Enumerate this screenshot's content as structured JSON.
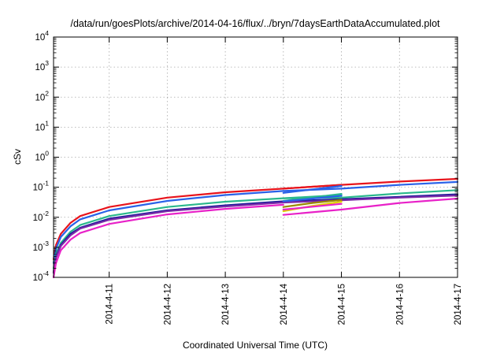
{
  "chart_data": {
    "type": "line",
    "title": "/data/run/goesPlots/archive/2014-04-16/flux/../bryn/7daysEarthDataAccumulated.plot",
    "xlabel": "Coordinated Universal Time (UTC)",
    "ylabel": "cSv",
    "x_ticks": [
      "2014-4-11",
      "2014-4-12",
      "2014-4-13",
      "2014-4-14",
      "2014-4-15",
      "2014-4-16",
      "2014-4-17"
    ],
    "y_ticks": [
      {
        "base": "10",
        "exp": "-4",
        "value": 0.0001
      },
      {
        "base": "10",
        "exp": "-3",
        "value": 0.001
      },
      {
        "base": "10",
        "exp": "-2",
        "value": 0.01
      },
      {
        "base": "10",
        "exp": "-1",
        "value": 0.1
      },
      {
        "base": "10",
        "exp": "0",
        "value": 1
      },
      {
        "base": "10",
        "exp": "1",
        "value": 10
      },
      {
        "base": "10",
        "exp": "2",
        "value": 100
      },
      {
        "base": "10",
        "exp": "3",
        "value": 1000
      },
      {
        "base": "10",
        "exp": "4",
        "value": 10000
      }
    ],
    "xlim": [
      "2014-04-10T01:00",
      "2014-04-17T00:00"
    ],
    "ylim": [
      0.0001,
      10000
    ],
    "y_scale": "log",
    "grid": true,
    "legend": "none",
    "series": [
      {
        "color": "#e8141c",
        "x": [
          "2014-04-10T01:00",
          "2014-04-10T02:00",
          "2014-04-10T04:00",
          "2014-04-10T08:00",
          "2014-04-10T12:00",
          "2014-04-11T00:00",
          "2014-04-12T00:00",
          "2014-04-13T00:00",
          "2014-04-14T00:00",
          "2014-04-15T00:00"
        ],
        "y": [
          0.0004,
          0.0012,
          0.0028,
          0.0065,
          0.011,
          0.022,
          0.045,
          0.068,
          0.09,
          0.12
        ]
      },
      {
        "color": "#e8141c",
        "x": [
          "2014-04-14T00:00",
          "2014-04-15T00:00",
          "2014-04-16T00:00",
          "2014-04-17T00:00"
        ],
        "y": [
          0.09,
          0.12,
          0.155,
          0.19
        ]
      },
      {
        "color": "#2a62e8",
        "x": [
          "2014-04-10T01:00",
          "2014-04-10T02:00",
          "2014-04-10T04:00",
          "2014-04-10T08:00",
          "2014-04-10T12:00",
          "2014-04-11T00:00",
          "2014-04-12T00:00",
          "2014-04-13T00:00",
          "2014-04-14T00:00"
        ],
        "y": [
          0.0003,
          0.0009,
          0.0022,
          0.005,
          0.0085,
          0.017,
          0.035,
          0.055,
          0.075
        ]
      },
      {
        "color": "#2a62e8",
        "x": [
          "2014-04-14T00:00",
          "2014-04-15T00:00",
          "2014-04-16T00:00",
          "2014-04-17T00:00"
        ],
        "y": [
          0.075,
          0.09,
          0.12,
          0.15
        ]
      },
      {
        "color": "#2ab88c",
        "x": [
          "2014-04-10T01:00",
          "2014-04-10T02:00",
          "2014-04-10T04:00",
          "2014-04-10T08:00",
          "2014-04-10T12:00",
          "2014-04-11T00:00",
          "2014-04-12T00:00",
          "2014-04-13T00:00",
          "2014-04-14T00:00",
          "2014-04-15T00:00"
        ],
        "y": [
          0.0002,
          0.0006,
          0.0014,
          0.0033,
          0.0055,
          0.011,
          0.022,
          0.033,
          0.043,
          0.055
        ]
      },
      {
        "color": "#2ab88c",
        "x": [
          "2014-04-14T00:00",
          "2014-04-15T00:00",
          "2014-04-16T00:00",
          "2014-04-17T00:00"
        ],
        "y": [
          0.043,
          0.045,
          0.062,
          0.08
        ]
      },
      {
        "color": "#1a1a9a",
        "x": [
          "2014-04-10T01:00",
          "2014-04-10T02:00",
          "2014-04-10T04:00",
          "2014-04-10T08:00",
          "2014-04-10T12:00",
          "2014-04-11T00:00",
          "2014-04-12T00:00",
          "2014-04-13T00:00",
          "2014-04-14T00:00",
          "2014-04-15T00:00",
          "2014-04-16T00:00",
          "2014-04-17T00:00"
        ],
        "y": [
          0.00015,
          0.0005,
          0.0012,
          0.0028,
          0.0045,
          0.009,
          0.017,
          0.025,
          0.034,
          0.04,
          0.048,
          0.058
        ]
      },
      {
        "color": "#7a2aa8",
        "x": [
          "2014-04-10T01:00",
          "2014-04-10T02:00",
          "2014-04-10T04:00",
          "2014-04-10T08:00",
          "2014-04-10T12:00",
          "2014-04-11T00:00",
          "2014-04-12T00:00",
          "2014-04-13T00:00",
          "2014-04-14T00:00",
          "2014-04-15T00:00",
          "2014-04-16T00:00",
          "2014-04-17T00:00"
        ],
        "y": [
          0.00014,
          0.00045,
          0.0011,
          0.0025,
          0.0042,
          0.0082,
          0.016,
          0.023,
          0.031,
          0.037,
          0.045,
          0.053
        ]
      },
      {
        "color": "#e821c8",
        "x": [
          "2014-04-10T01:00",
          "2014-04-10T02:00",
          "2014-04-10T04:00",
          "2014-04-10T08:00",
          "2014-04-10T12:00",
          "2014-04-11T00:00",
          "2014-04-12T00:00",
          "2014-04-13T00:00",
          "2014-04-14T00:00"
        ],
        "y": [
          0.0001,
          0.0003,
          0.0008,
          0.0018,
          0.003,
          0.006,
          0.0125,
          0.019,
          0.026
        ]
      },
      {
        "color": "#e821c8",
        "x": [
          "2014-04-14T00:00",
          "2014-04-15T00:00",
          "2014-04-16T00:00",
          "2014-04-17T00:00"
        ],
        "y": [
          0.012,
          0.018,
          0.03,
          0.042
        ]
      },
      {
        "color": "#e0d000",
        "x": [
          "2014-04-14T00:00",
          "2014-04-14T12:00",
          "2014-04-15T00:00"
        ],
        "y": [
          0.016,
          0.024,
          0.033
        ]
      },
      {
        "color": "#9a8a00",
        "x": [
          "2014-04-14T00:00",
          "2014-04-14T12:00",
          "2014-04-15T00:00"
        ],
        "y": [
          0.022,
          0.03,
          0.038
        ]
      },
      {
        "color": "#2a62e8",
        "x": [
          "2014-04-14T00:00",
          "2014-04-15T00:00"
        ],
        "y": [
          0.065,
          0.11
        ]
      },
      {
        "color": "#2ab88c",
        "x": [
          "2014-04-14T00:00",
          "2014-04-15T00:00"
        ],
        "y": [
          0.035,
          0.06
        ]
      },
      {
        "color": "#2a62e8",
        "x": [
          "2014-04-14T00:00",
          "2014-04-15T00:00"
        ],
        "y": [
          0.034,
          0.052
        ]
      },
      {
        "color": "#e821c8",
        "x": [
          "2014-04-14T00:00",
          "2014-04-15T00:00"
        ],
        "y": [
          0.018,
          0.028
        ]
      }
    ]
  }
}
